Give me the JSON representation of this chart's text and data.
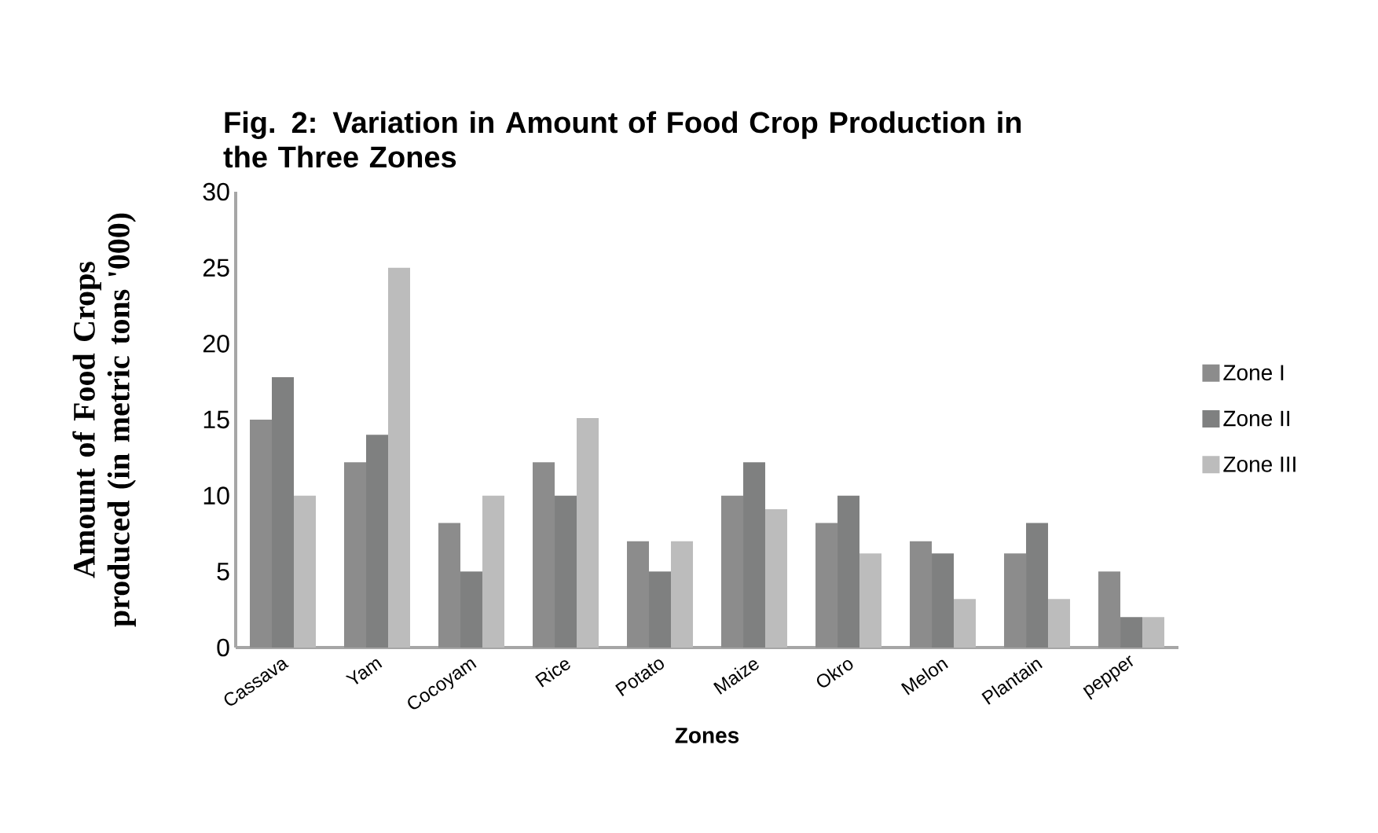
{
  "chart_data": {
    "type": "bar",
    "title": "Fig. 2:  Variation in Amount of Food Crop Production in the Three Zones",
    "xlabel": "Zones",
    "ylabel": "Amount of Food Crops produced (in metric tons '000)",
    "categories": [
      "Cassava",
      "Yam",
      "Cocoyam",
      "Rice",
      "Potato",
      "Maize",
      "Okro",
      "Melon",
      "Plantain",
      "pepper"
    ],
    "series": [
      {
        "name": "Zone I",
        "color": "#8c8c8c",
        "values": [
          15,
          12.2,
          8.2,
          12.2,
          7,
          10,
          8.2,
          7,
          6.2,
          5
        ]
      },
      {
        "name": "Zone II",
        "color": "#7f8080",
        "values": [
          17.8,
          14,
          5,
          10,
          5,
          12.2,
          10,
          6.2,
          8.2,
          2
        ]
      },
      {
        "name": "Zone III",
        "color": "#bcbcbc",
        "values": [
          10,
          25,
          10,
          15.1,
          7,
          9.1,
          6.2,
          3.2,
          3.2,
          2
        ]
      }
    ],
    "ylim": [
      0,
      30
    ],
    "yticks": [
      0,
      5,
      10,
      15,
      20,
      25,
      30
    ],
    "legend": "right",
    "grid": false
  }
}
